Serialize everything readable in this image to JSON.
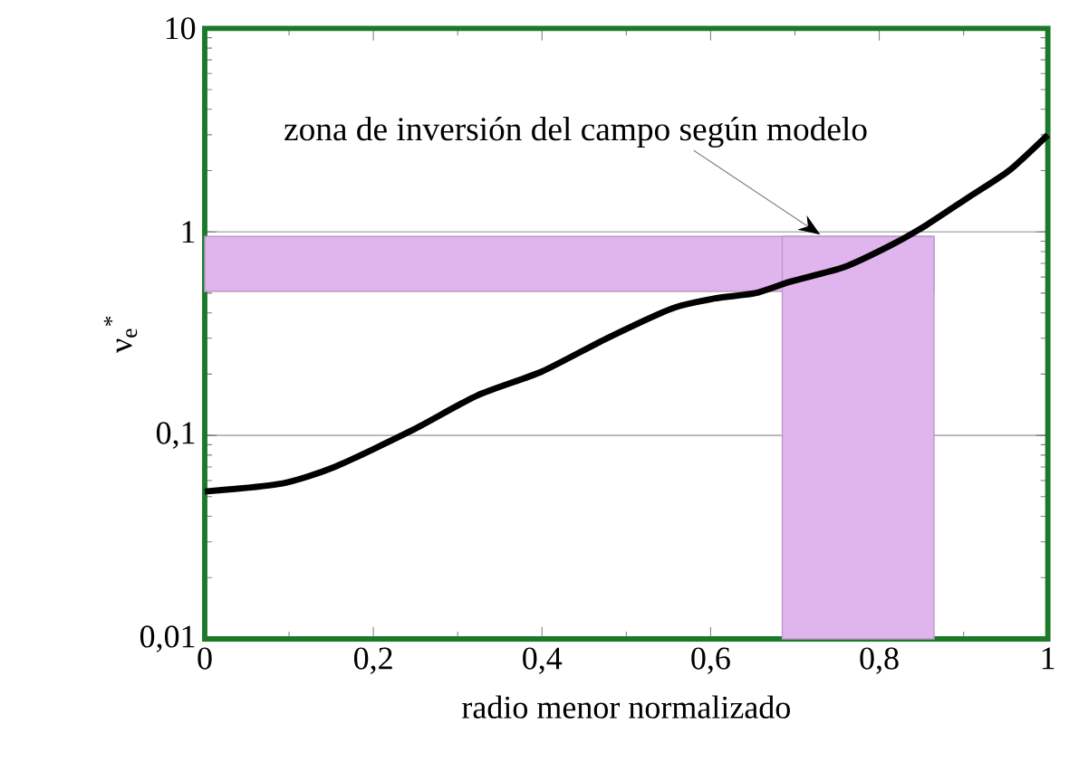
{
  "chart_data": {
    "type": "line",
    "xlabel": "radio menor normalizado",
    "ylabel": "ν$_{e}$$^{*}$",
    "x": [
      0,
      0.091,
      0.154,
      0.246,
      0.323,
      0.4,
      0.477,
      0.554,
      0.604,
      0.653,
      0.695,
      0.758,
      0.814,
      0.856,
      0.905,
      0.954,
      1.0
    ],
    "series": [
      {
        "color": "#000000",
        "values": [
          0.053,
          0.058,
          0.07,
          0.106,
          0.157,
          0.206,
          0.3,
          0.42,
          0.47,
          0.5,
          0.57,
          0.67,
          0.86,
          1.08,
          1.47,
          2.0,
          3.0
        ]
      }
    ],
    "xlim": [
      0,
      1
    ],
    "ylim": [
      0.01,
      10
    ],
    "log": "y",
    "grid": "y",
    "marker": "none",
    "line_style": "solid",
    "xticks": [
      0,
      {
        "value": 0.2,
        "label": "0,2"
      },
      {
        "value": 0.4,
        "label": "0,4"
      },
      {
        "value": 0.6,
        "label": "0,6"
      },
      {
        "value": 0.8,
        "label": "0,8"
      },
      1
    ],
    "yticks": [
      {
        "value": 0.01,
        "label": "0,01"
      },
      {
        "value": 0.1,
        "label": "0,1"
      },
      1,
      10
    ],
    "bands": [
      {
        "axis": "y",
        "from": 0.51,
        "to": 0.95,
        "color": "#e0b4ec"
      },
      {
        "axis": "x",
        "from": 0.685,
        "to": 0.865,
        "color": "#e0b4ec"
      }
    ],
    "annotations": [
      {
        "text": "zona de inversión del campo según modelo",
        "x": 0.73,
        "y": 0.97
      }
    ]
  }
}
